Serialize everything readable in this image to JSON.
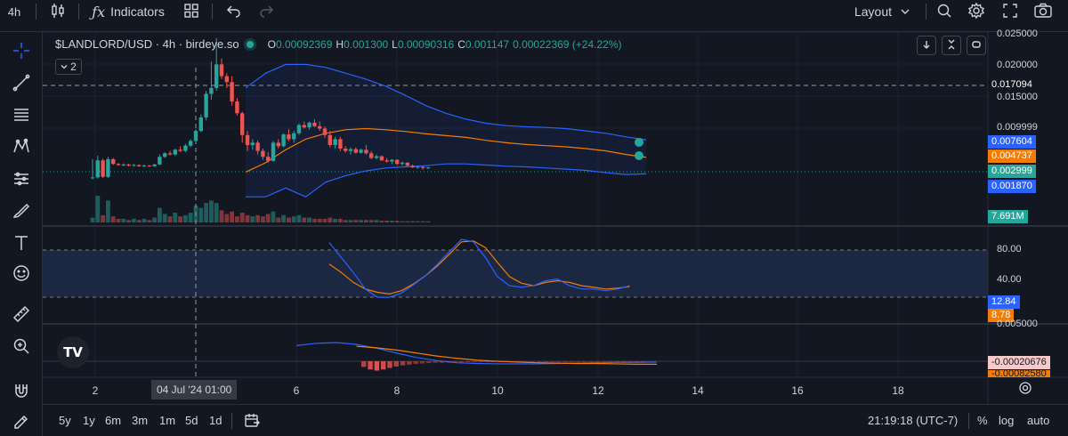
{
  "toolbar": {
    "interval": "4h",
    "indicators_label": "Indicators",
    "layout_label": "Layout"
  },
  "legend": {
    "symbol": "$LANDLORD/USD · 4h · birdeye.so",
    "o_key": "O",
    "o": "0.00092369",
    "h_key": "H",
    "h": "0.001300",
    "l_key": "L",
    "l": "0.00090316",
    "c_key": "C",
    "c": "0.001147",
    "change": "0.00022369 (+24.22%)",
    "collapsed_count": "2"
  },
  "price_axis": {
    "ticks": [
      "0.025000",
      "0.020000",
      "0.015000",
      "0.009999"
    ],
    "crosshair_price": "0.017094",
    "badges": [
      {
        "text": "0.007604",
        "color": "#2962ff"
      },
      {
        "text": "0.004737",
        "color": "#f57c00"
      },
      {
        "text": "0.002999",
        "color": "#26a69a"
      },
      {
        "text": "0.001870",
        "color": "#2962ff"
      }
    ],
    "volume_badge": "7.691M",
    "volume_badge_color": "#26a69a"
  },
  "stoch_axis": {
    "ticks": [
      "80.00",
      "40.00"
    ],
    "badges": [
      {
        "text": "12.84",
        "color": "#2962ff"
      },
      {
        "text": "8.78",
        "color": "#f57c00"
      }
    ]
  },
  "macd_axis": {
    "tick": "0.005000",
    "badges": [
      {
        "text": "-0.00020676",
        "color": "#f8c9c9",
        "textcolor": "#131722"
      },
      {
        "text": "-0.00082580",
        "color": "#f57c00",
        "textcolor": "#131722"
      }
    ]
  },
  "time_axis": {
    "ticks": [
      "2",
      "6",
      "8",
      "10",
      "12",
      "14",
      "16",
      "18"
    ],
    "crosshair_label": "04 Jul '24   01:00"
  },
  "bottom": {
    "ranges": [
      "5y",
      "1y",
      "6m",
      "3m",
      "1m",
      "5d",
      "1d"
    ],
    "clock": "21:19:18 (UTC-7)",
    "percent": "%",
    "log": "log",
    "auto": "auto"
  },
  "logo_text": "TV",
  "colors": {
    "up": "#26a69a",
    "down": "#ef5350",
    "bollinger": "#2962ff",
    "basis": "#f57c00",
    "background": "#131722"
  },
  "chart_data": {
    "type": "candlestick",
    "title": "$LANDLORD/USD · 4h · birdeye.so",
    "x_axis_ticks": [
      "2",
      "6",
      "8",
      "10",
      "12",
      "14",
      "16",
      "18"
    ],
    "y_axis_ticks": [
      0.025,
      0.02,
      0.015,
      0.009999
    ],
    "ylim": [
      0,
      0.026
    ],
    "candles": [
      {
        "o": 0.0012,
        "h": 0.0044,
        "l": 0.001,
        "c": 0.0013
      },
      {
        "o": 0.0013,
        "h": 0.005,
        "l": 0.0011,
        "c": 0.0042
      },
      {
        "o": 0.0042,
        "h": 0.0045,
        "l": 0.0012,
        "c": 0.0014
      },
      {
        "o": 0.0014,
        "h": 0.0048,
        "l": 0.0012,
        "c": 0.0044
      },
      {
        "o": 0.0044,
        "h": 0.0046,
        "l": 0.0034,
        "c": 0.0036
      },
      {
        "o": 0.0036,
        "h": 0.0037,
        "l": 0.0033,
        "c": 0.0034
      },
      {
        "o": 0.0034,
        "h": 0.0037,
        "l": 0.0032,
        "c": 0.0035
      },
      {
        "o": 0.0035,
        "h": 0.0036,
        "l": 0.0032,
        "c": 0.0033
      },
      {
        "o": 0.0033,
        "h": 0.0036,
        "l": 0.0032,
        "c": 0.0034
      },
      {
        "o": 0.0034,
        "h": 0.0035,
        "l": 0.0031,
        "c": 0.0032
      },
      {
        "o": 0.0032,
        "h": 0.0035,
        "l": 0.0031,
        "c": 0.0033
      },
      {
        "o": 0.0033,
        "h": 0.0034,
        "l": 0.0031,
        "c": 0.0032
      },
      {
        "o": 0.0032,
        "h": 0.0036,
        "l": 0.0031,
        "c": 0.0035
      },
      {
        "o": 0.0035,
        "h": 0.0052,
        "l": 0.0034,
        "c": 0.0048
      },
      {
        "o": 0.0048,
        "h": 0.0056,
        "l": 0.0046,
        "c": 0.0054
      },
      {
        "o": 0.0054,
        "h": 0.0058,
        "l": 0.005,
        "c": 0.0052
      },
      {
        "o": 0.0052,
        "h": 0.0062,
        "l": 0.005,
        "c": 0.006
      },
      {
        "o": 0.006,
        "h": 0.0066,
        "l": 0.0056,
        "c": 0.0058
      },
      {
        "o": 0.0058,
        "h": 0.007,
        "l": 0.0056,
        "c": 0.0067
      },
      {
        "o": 0.0067,
        "h": 0.0078,
        "l": 0.0064,
        "c": 0.0075
      },
      {
        "o": 0.0075,
        "h": 0.0095,
        "l": 0.0072,
        "c": 0.0092
      },
      {
        "o": 0.0092,
        "h": 0.012,
        "l": 0.009,
        "c": 0.0115
      },
      {
        "o": 0.0115,
        "h": 0.016,
        "l": 0.011,
        "c": 0.0155
      },
      {
        "o": 0.0155,
        "h": 0.021,
        "l": 0.0145,
        "c": 0.0165
      },
      {
        "o": 0.0165,
        "h": 0.025,
        "l": 0.016,
        "c": 0.0205
      },
      {
        "o": 0.0205,
        "h": 0.0215,
        "l": 0.018,
        "c": 0.0185
      },
      {
        "o": 0.0185,
        "h": 0.019,
        "l": 0.0165,
        "c": 0.0175
      },
      {
        "o": 0.0175,
        "h": 0.0185,
        "l": 0.0135,
        "c": 0.0142
      },
      {
        "o": 0.0142,
        "h": 0.0148,
        "l": 0.0118,
        "c": 0.0122
      },
      {
        "o": 0.0122,
        "h": 0.0125,
        "l": 0.0072,
        "c": 0.0085
      },
      {
        "o": 0.0085,
        "h": 0.0092,
        "l": 0.0058,
        "c": 0.0068
      },
      {
        "o": 0.0068,
        "h": 0.0078,
        "l": 0.006,
        "c": 0.0072
      },
      {
        "o": 0.0072,
        "h": 0.0076,
        "l": 0.0052,
        "c": 0.0058
      },
      {
        "o": 0.0058,
        "h": 0.0062,
        "l": 0.0043,
        "c": 0.0048
      },
      {
        "o": 0.0048,
        "h": 0.0056,
        "l": 0.0038,
        "c": 0.0041
      },
      {
        "o": 0.0041,
        "h": 0.0075,
        "l": 0.004,
        "c": 0.0072
      },
      {
        "o": 0.0072,
        "h": 0.0078,
        "l": 0.0062,
        "c": 0.0066
      },
      {
        "o": 0.0066,
        "h": 0.0088,
        "l": 0.0064,
        "c": 0.0086
      },
      {
        "o": 0.0086,
        "h": 0.0095,
        "l": 0.0074,
        "c": 0.0078
      },
      {
        "o": 0.0078,
        "h": 0.0092,
        "l": 0.0072,
        "c": 0.0088
      },
      {
        "o": 0.0088,
        "h": 0.0105,
        "l": 0.0085,
        "c": 0.0102
      },
      {
        "o": 0.0102,
        "h": 0.0108,
        "l": 0.0096,
        "c": 0.0098
      },
      {
        "o": 0.0098,
        "h": 0.0108,
        "l": 0.0094,
        "c": 0.0106
      },
      {
        "o": 0.0106,
        "h": 0.0112,
        "l": 0.0098,
        "c": 0.01
      },
      {
        "o": 0.01,
        "h": 0.0108,
        "l": 0.0092,
        "c": 0.0096
      },
      {
        "o": 0.0096,
        "h": 0.01,
        "l": 0.008,
        "c": 0.0085
      },
      {
        "o": 0.0085,
        "h": 0.0092,
        "l": 0.0064,
        "c": 0.0068
      },
      {
        "o": 0.0068,
        "h": 0.0082,
        "l": 0.0062,
        "c": 0.0078
      },
      {
        "o": 0.0078,
        "h": 0.0082,
        "l": 0.0058,
        "c": 0.0062
      },
      {
        "o": 0.0062,
        "h": 0.0066,
        "l": 0.0055,
        "c": 0.0058
      },
      {
        "o": 0.0058,
        "h": 0.0064,
        "l": 0.0052,
        "c": 0.0061
      },
      {
        "o": 0.0061,
        "h": 0.0064,
        "l": 0.0053,
        "c": 0.0055
      },
      {
        "o": 0.0055,
        "h": 0.0062,
        "l": 0.0053,
        "c": 0.006
      },
      {
        "o": 0.006,
        "h": 0.0068,
        "l": 0.0052,
        "c": 0.0054
      },
      {
        "o": 0.0054,
        "h": 0.0058,
        "l": 0.0044,
        "c": 0.0046
      },
      {
        "o": 0.0046,
        "h": 0.0052,
        "l": 0.0044,
        "c": 0.0049
      },
      {
        "o": 0.0049,
        "h": 0.005,
        "l": 0.0041,
        "c": 0.0042
      },
      {
        "o": 0.0042,
        "h": 0.0046,
        "l": 0.0038,
        "c": 0.004
      },
      {
        "o": 0.004,
        "h": 0.0044,
        "l": 0.0036,
        "c": 0.0043
      },
      {
        "o": 0.0043,
        "h": 0.0044,
        "l": 0.0034,
        "c": 0.0036
      },
      {
        "o": 0.0036,
        "h": 0.004,
        "l": 0.0033,
        "c": 0.0038
      },
      {
        "o": 0.0038,
        "h": 0.0039,
        "l": 0.0032,
        "c": 0.0033
      },
      {
        "o": 0.0033,
        "h": 0.0035,
        "l": 0.0029,
        "c": 0.003
      },
      {
        "o": 0.003,
        "h": 0.0033,
        "l": 0.0028,
        "c": 0.0031
      },
      {
        "o": 0.0031,
        "h": 0.0032,
        "l": 0.0026,
        "c": 0.0029
      },
      {
        "o": 0.0029,
        "h": 0.0031,
        "l": 0.0027,
        "c": 0.003
      }
    ],
    "volume": [
      0.4,
      2.2,
      0.6,
      1.8,
      0.5,
      0.3,
      0.3,
      0.2,
      0.3,
      0.2,
      0.3,
      0.2,
      0.4,
      1.2,
      0.7,
      0.5,
      0.8,
      0.5,
      0.6,
      0.8,
      1.4,
      1.2,
      1.6,
      1.8,
      1.6,
      1.0,
      0.7,
      0.9,
      0.5,
      0.8,
      0.6,
      0.5,
      0.6,
      0.5,
      0.7,
      0.9,
      0.4,
      0.6,
      0.4,
      0.5,
      0.6,
      0.4,
      0.4,
      0.3,
      0.3,
      0.3,
      0.4,
      0.3,
      0.3,
      0.2,
      0.2,
      0.2,
      0.2,
      0.2,
      0.2,
      0.2,
      0.15,
      0.15,
      0.15,
      0.15,
      0.1,
      0.1,
      0.1,
      0.1,
      0.1,
      0.1
    ],
    "bollinger": {
      "upper": [
        0.0165,
        0.019,
        0.0205,
        0.0205,
        0.02,
        0.019,
        0.018,
        0.0168,
        0.0152,
        0.0135,
        0.0122,
        0.0112,
        0.0105,
        0.0101,
        0.0099,
        0.0098,
        0.0096,
        0.0092,
        0.0088,
        0.0082,
        0.0077
      ],
      "basis": [
        0.0022,
        0.0038,
        0.006,
        0.0078,
        0.0088,
        0.0094,
        0.0096,
        0.0094,
        0.0091,
        0.0087,
        0.0084,
        0.0081,
        0.0076,
        0.0072,
        0.0069,
        0.0067,
        0.0065,
        0.0062,
        0.0058,
        0.0052,
        0.0047
      ],
      "lower": [
        -0.002,
        -0.002,
        -0.0005,
        -0.002,
        0.0005,
        0.0016,
        0.0024,
        0.0029,
        0.0031,
        0.0033,
        0.0036,
        0.0036,
        0.0034,
        0.0032,
        0.0031,
        0.0029,
        0.0027,
        0.0025,
        0.0021,
        0.0018,
        0.0019
      ]
    },
    "stoch_k": [
      96,
      78,
      60,
      40,
      30,
      30,
      35,
      45,
      56,
      70,
      85,
      100,
      97,
      78,
      55,
      44,
      42,
      44,
      50,
      52,
      44,
      40,
      40,
      38,
      40,
      44
    ],
    "stoch_d": [
      70,
      60,
      48,
      40,
      36,
      34,
      38,
      46,
      56,
      68,
      82,
      97,
      98,
      90,
      72,
      55,
      47,
      44,
      48,
      50,
      48,
      44,
      42,
      40,
      41,
      43
    ],
    "macd_line": [
      0.0042,
      0.0048,
      0.005,
      0.0045,
      0.0035,
      0.0022,
      0.001,
      0.0002,
      -0.0004,
      -0.0006,
      -0.0007,
      -0.0007,
      -0.0007,
      -0.0006,
      -0.0005,
      -0.0004,
      -0.0003,
      -0.0003,
      -0.0002
    ],
    "macd_signal": [
      null,
      null,
      null,
      0.004,
      0.0036,
      0.003,
      0.0022,
      0.0014,
      0.0008,
      0.0003,
      0.0,
      -0.0002,
      -0.0004,
      -0.0005,
      -0.0006,
      -0.0006,
      -0.0007,
      -0.0008,
      -0.0008
    ],
    "macd_hist": [
      -0.0015,
      -0.0022,
      -0.0025,
      -0.0022,
      -0.0018,
      -0.0014,
      -0.0011,
      -0.0009,
      -0.0007,
      -0.0006,
      -0.0005,
      -0.0004,
      -0.0004,
      -0.0003,
      -0.0003,
      -0.0003,
      -0.0002,
      -0.0002,
      -0.0002,
      -0.0002,
      -0.0002,
      -0.0001,
      -0.0001,
      -0.0001,
      -0.0001,
      -0.0001,
      -0.0001,
      -0.0001,
      -0.0001,
      -0.0001,
      -0.0001,
      -0.0001,
      -0.0001,
      -0.0001,
      -0.0001,
      -0.0001,
      -0.0001,
      -0.0001,
      -0.0001,
      -0.0001,
      -0.0001,
      -0.0001,
      -0.0001,
      -0.0001
    ]
  }
}
